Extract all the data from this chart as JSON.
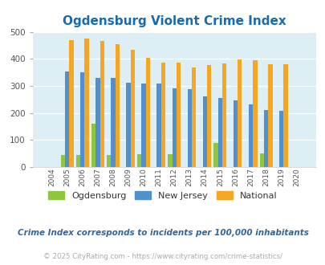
{
  "title": "Ogdensburg Violent Crime Index",
  "years": [
    2004,
    2005,
    2006,
    2007,
    2008,
    2009,
    2010,
    2011,
    2012,
    2013,
    2014,
    2015,
    2016,
    2017,
    2018,
    2019,
    2020
  ],
  "ogdensburg": [
    0,
    43,
    43,
    160,
    43,
    0,
    47,
    0,
    47,
    0,
    0,
    90,
    0,
    0,
    51,
    0,
    0
  ],
  "new_jersey": [
    0,
    354,
    350,
    328,
    328,
    311,
    309,
    308,
    290,
    287,
    260,
    255,
    247,
    230,
    210,
    207,
    0
  ],
  "national": [
    0,
    469,
    474,
    467,
    455,
    432,
    405,
    387,
    387,
    368,
    376,
    383,
    397,
    394,
    380,
    379,
    0
  ],
  "ogdensburg_color": "#8dc63f",
  "new_jersey_color": "#4f90cd",
  "national_color": "#f5a623",
  "fig_bg_color": "#ffffff",
  "plot_bg_color": "#ddeef5",
  "ylim": [
    0,
    500
  ],
  "yticks": [
    0,
    100,
    200,
    300,
    400,
    500
  ],
  "subtitle": "Crime Index corresponds to incidents per 100,000 inhabitants",
  "footer": "© 2025 CityRating.com - https://www.cityrating.com/crime-statistics/",
  "title_color": "#1a6aad",
  "subtitle_color": "#336699",
  "footer_color": "#aaaaaa"
}
